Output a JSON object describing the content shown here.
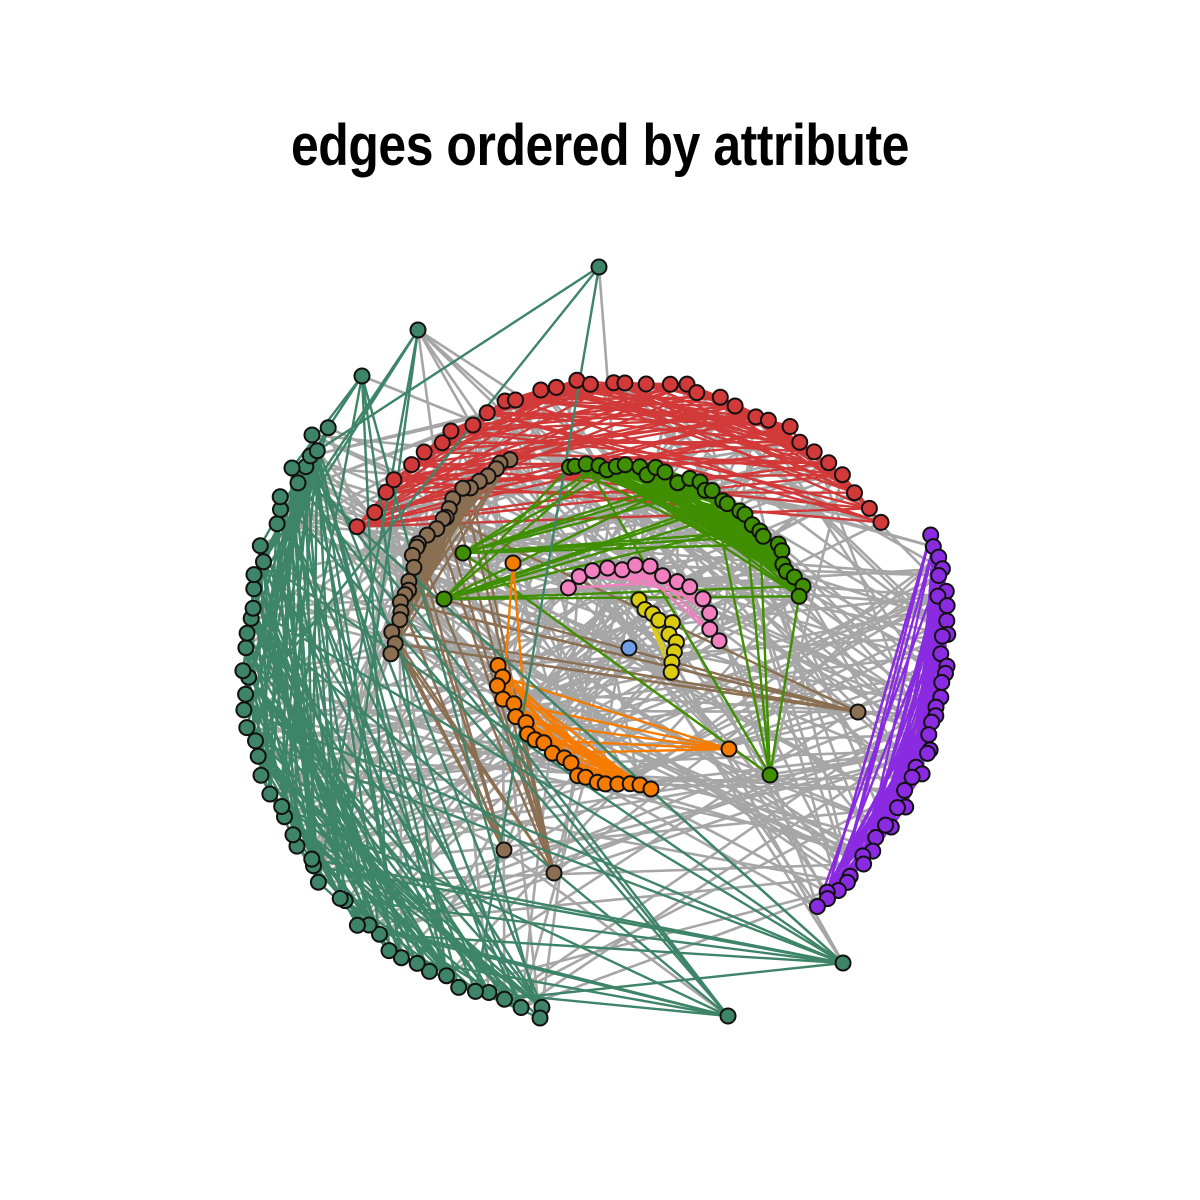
{
  "title": "edges ordered by attribute",
  "colors": {
    "neutral_edge": "#a6a6a6",
    "node_stroke": "#111111",
    "red": "#d23a3a",
    "brown": "#8b6f52",
    "green": "#3f8f00",
    "pink": "#f27fbf",
    "yellow": "#dccc10",
    "orange": "#f57c00",
    "purple": "#8a2be2",
    "teal": "#3e8468",
    "blue": "#6f9ee8"
  },
  "groups": [
    "red",
    "brown",
    "green",
    "pink",
    "yellow",
    "orange",
    "purple",
    "teal",
    "blue"
  ],
  "seed": 7
}
